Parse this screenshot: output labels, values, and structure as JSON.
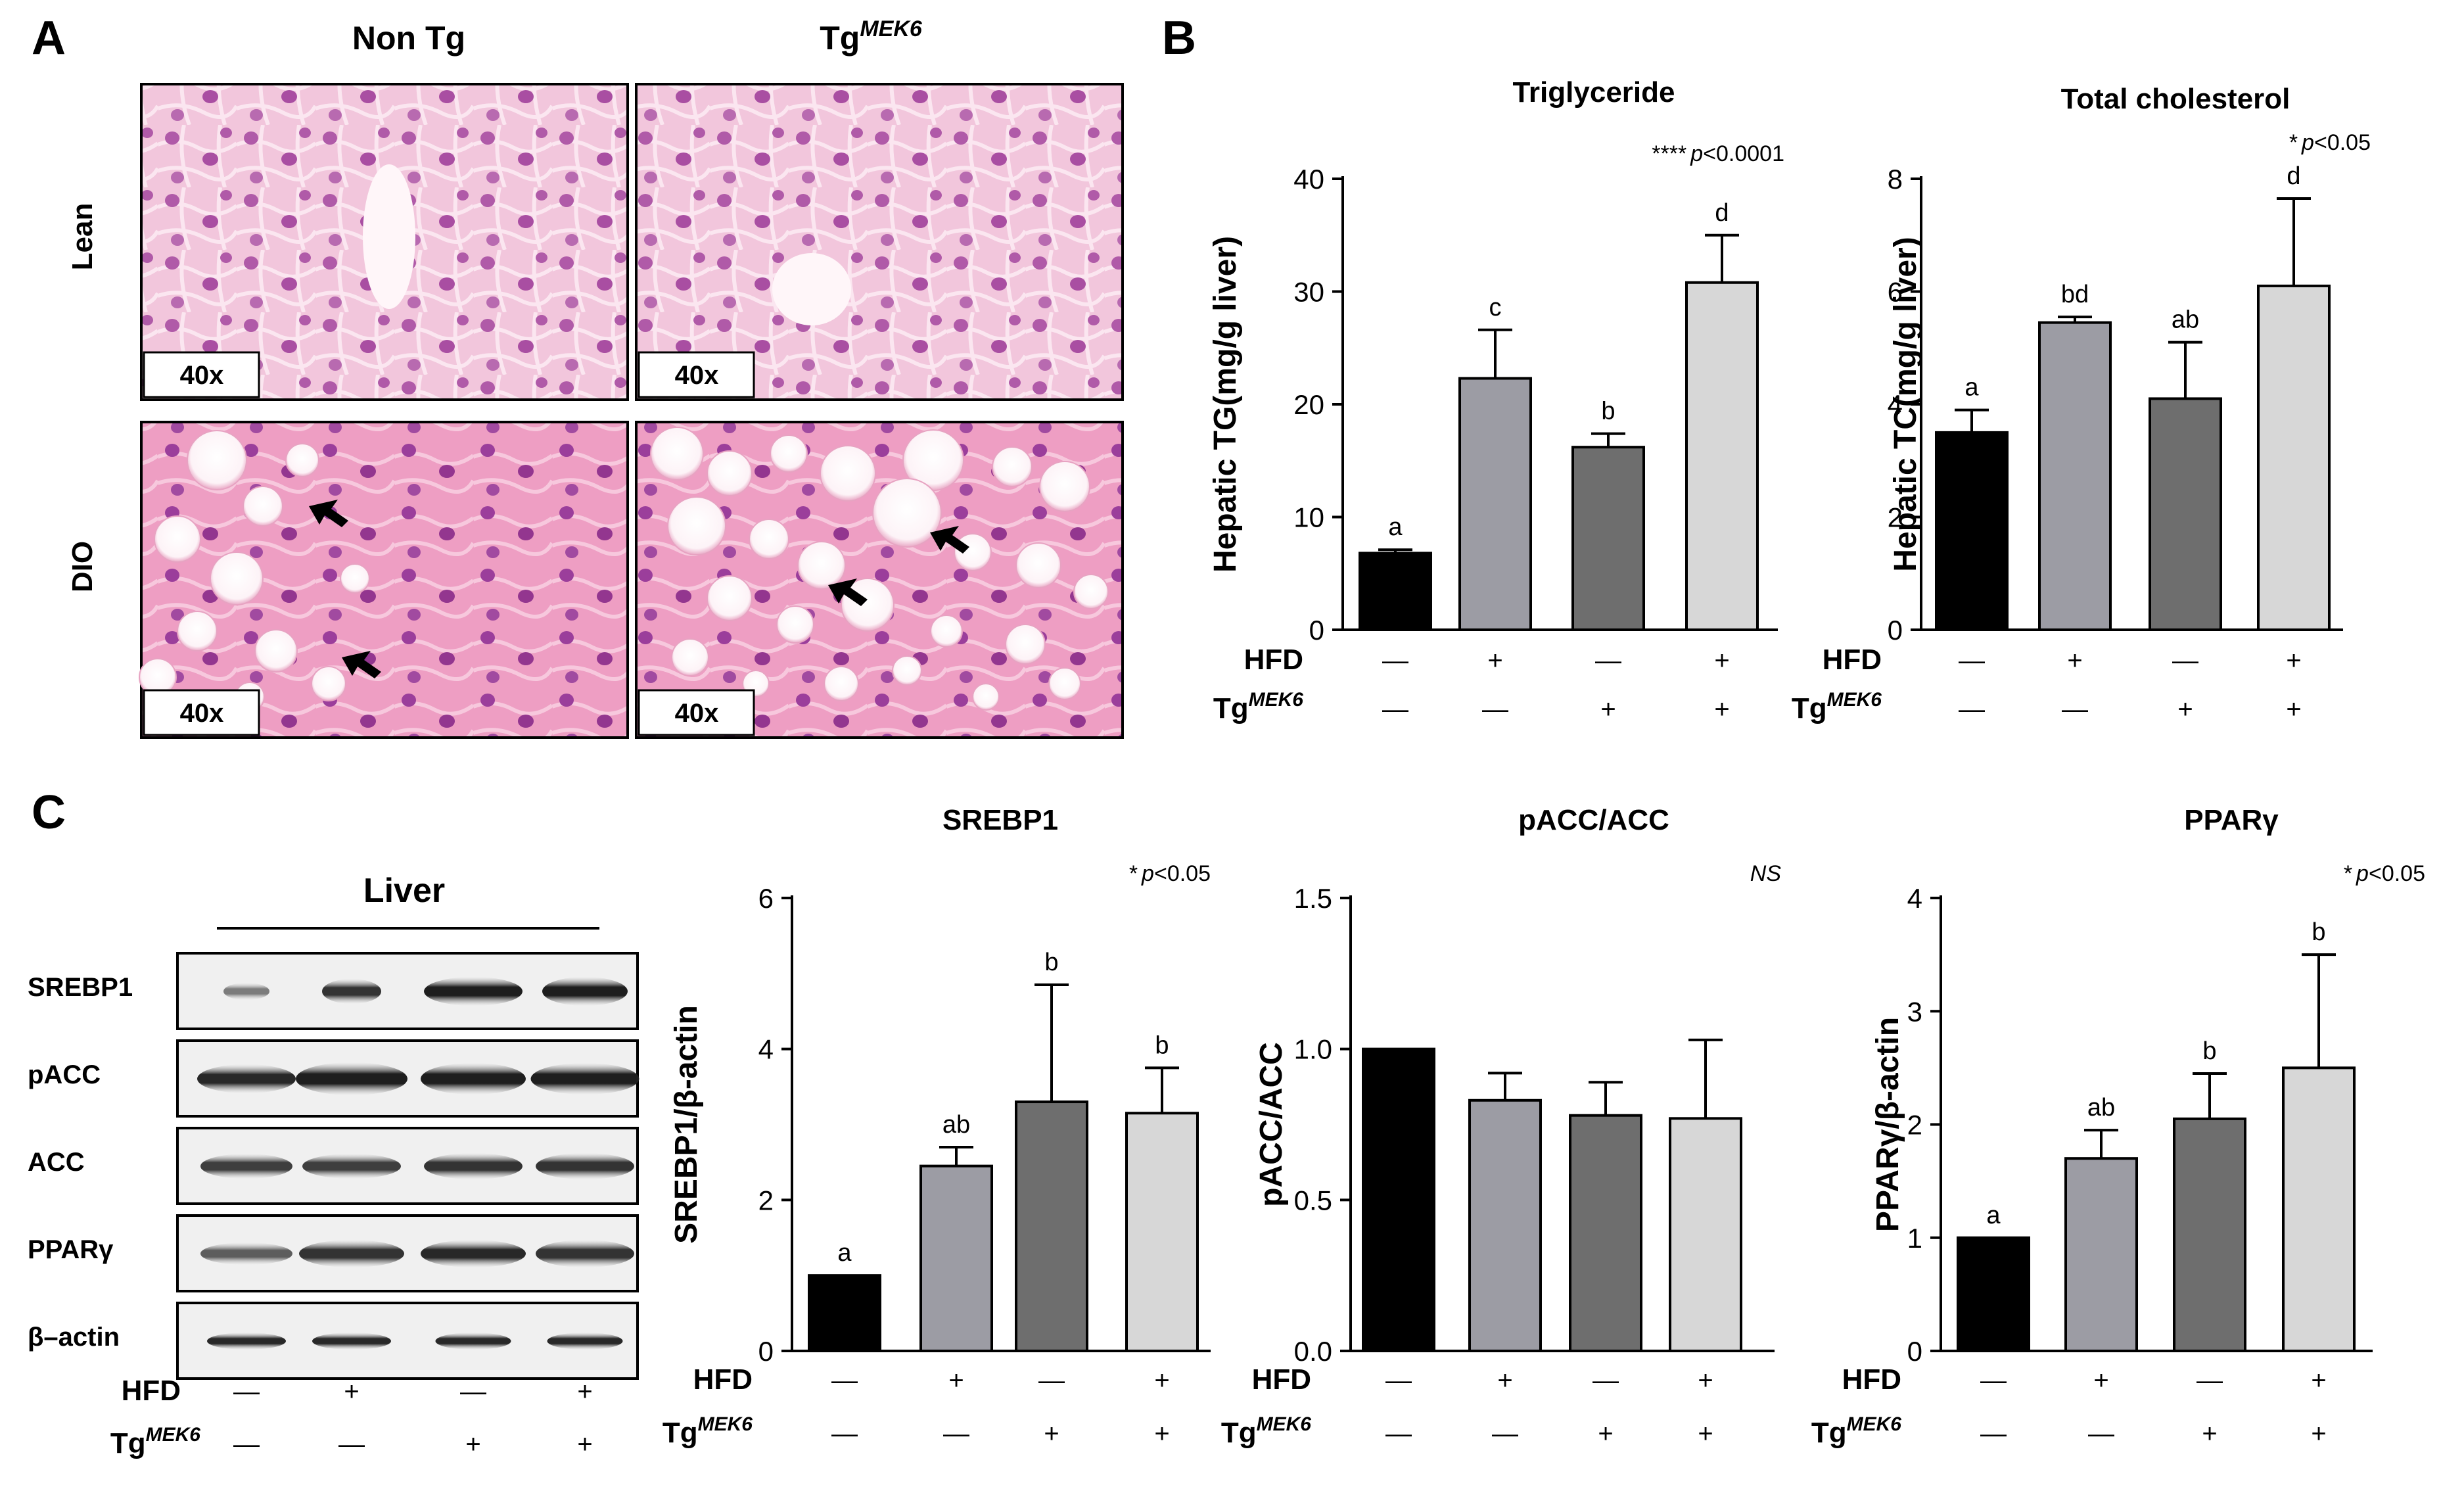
{
  "panels": {
    "A": {
      "letter": "A",
      "col_labels": [
        "Non Tg",
        "Tg",
        "MEK6"
      ],
      "row_labels": [
        "Lean",
        "DIO"
      ],
      "magnification": "40x"
    },
    "B": {
      "letter": "B"
    },
    "C": {
      "letter": "C",
      "blot_title": "Liver",
      "blot_rows": [
        "SREBP1",
        "pACC",
        "ACC",
        "PPARγ",
        "β–actin"
      ]
    }
  },
  "conditions": {
    "row1_label": "HFD",
    "row2_label_main": "Tg",
    "row2_label_sup": "MEK6",
    "hfd": [
      "—",
      "+",
      "—",
      "+"
    ],
    "tg": [
      "—",
      "—",
      "+",
      "+"
    ]
  },
  "colors": {
    "bar_fills": [
      "#000000",
      "#9c9ca4",
      "#6e6e6e",
      "#d7d7d7"
    ],
    "tissue_lean": "#f2c6dc",
    "tissue_dio": "#ef9fc4",
    "nucleus": "#9b3e9b",
    "vacuole": "#ffffff"
  },
  "chart_data": [
    {
      "id": "tg",
      "type": "bar",
      "title": "Triglyceride",
      "ylabel": "Hepatic TG(mg/g liver)",
      "ylim": [
        0,
        40
      ],
      "yticks": [
        "0",
        "10",
        "20",
        "30",
        "40"
      ],
      "values": [
        6.8,
        22.3,
        16.2,
        30.8
      ],
      "errors": [
        0.3,
        4.3,
        1.2,
        4.2
      ],
      "letters": [
        "a",
        "c",
        "b",
        "d"
      ],
      "stat_stars": "****",
      "stat_p": "p",
      "stat_rest": "<0.0001"
    },
    {
      "id": "tc",
      "type": "bar",
      "title": "Total cholesterol",
      "ylabel": "Hepatic TC(mg/g liver)",
      "ylim": [
        0,
        8
      ],
      "yticks": [
        "0",
        "2",
        "4",
        "6",
        "8"
      ],
      "values": [
        3.5,
        5.45,
        4.1,
        6.1
      ],
      "errors": [
        0.4,
        0.1,
        1.0,
        1.55
      ],
      "letters": [
        "a",
        "bd",
        "ab",
        "d"
      ],
      "stat_stars": "*",
      "stat_p": "p",
      "stat_rest": "<0.05"
    },
    {
      "id": "srebp",
      "type": "bar",
      "title": "SREBP1",
      "ylabel": "SREBP1/β-actin",
      "ylim": [
        0,
        6
      ],
      "yticks": [
        "0",
        "2",
        "4",
        "6"
      ],
      "values": [
        1.0,
        2.45,
        3.3,
        3.15
      ],
      "errors": [
        0,
        0.25,
        1.55,
        0.6
      ],
      "letters": [
        "a",
        "ab",
        "b",
        "b"
      ],
      "stat_stars": "*",
      "stat_p": "p",
      "stat_rest": "<0.05"
    },
    {
      "id": "pacc",
      "type": "bar",
      "title": "pACC/ACC",
      "ylabel": "pACC/ACC",
      "ylim": [
        0,
        1.5
      ],
      "yticks": [
        "0.0",
        "0.5",
        "1.0",
        "1.5"
      ],
      "values": [
        1.0,
        0.83,
        0.78,
        0.77
      ],
      "errors": [
        0,
        0.09,
        0.11,
        0.26
      ],
      "letters": [
        "",
        "",
        "",
        ""
      ],
      "stat_stars": "",
      "stat_p": "",
      "stat_rest": "NS"
    },
    {
      "id": "ppar",
      "type": "bar",
      "title": "PPARγ",
      "ylabel": "PPARγ/β-actin",
      "ylim": [
        0,
        4
      ],
      "yticks": [
        "0",
        "1",
        "2",
        "3",
        "4"
      ],
      "values": [
        1.0,
        1.7,
        2.05,
        2.5
      ],
      "errors": [
        0,
        0.25,
        0.4,
        1.0
      ],
      "letters": [
        "a",
        "ab",
        "b",
        "b"
      ],
      "stat_stars": "*",
      "stat_p": "p",
      "stat_rest": "<0.05"
    }
  ]
}
